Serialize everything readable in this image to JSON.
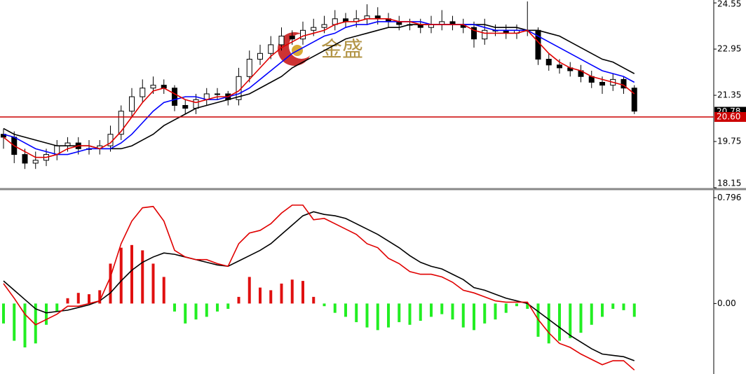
{
  "chart_data": [
    {
      "type": "candlestick",
      "watermark": "金盛",
      "ylim": [
        18.15,
        24.65
      ],
      "yticks": [
        24.55,
        22.95,
        21.35,
        19.75,
        18.15
      ],
      "up_color": "#ffffff",
      "down_color": "#000000",
      "open": [
        20.0,
        19.9,
        19.3,
        19.0,
        19.1,
        19.3,
        19.6,
        19.7,
        19.5,
        19.5,
        19.6,
        20.0,
        20.8,
        21.3,
        21.6,
        21.7,
        21.6,
        21.0,
        20.9,
        21.2,
        21.4,
        21.4,
        21.2,
        22.0,
        22.6,
        22.8,
        23.1,
        23.4,
        23.3,
        23.6,
        23.7,
        23.8,
        24.0,
        23.9,
        24.0,
        24.1,
        24.0,
        23.9,
        23.8,
        23.8,
        23.7,
        23.8,
        23.9,
        23.8,
        23.7,
        23.3,
        23.6,
        23.6,
        23.5,
        23.6,
        23.6,
        22.6,
        22.4,
        22.3,
        22.2,
        22.0,
        21.8,
        21.7,
        21.9,
        21.6
      ],
      "high": [
        20.2,
        20.1,
        19.5,
        19.4,
        19.5,
        19.8,
        19.9,
        19.9,
        19.8,
        19.8,
        20.3,
        21.0,
        21.6,
        21.9,
        22.0,
        21.9,
        21.7,
        21.2,
        21.4,
        21.6,
        21.6,
        21.5,
        22.3,
        22.9,
        23.1,
        23.4,
        23.7,
        23.6,
        23.9,
        24.0,
        24.1,
        24.3,
        24.2,
        24.3,
        24.5,
        24.4,
        24.2,
        24.1,
        24.0,
        24.0,
        24.1,
        24.3,
        24.1,
        24.0,
        23.9,
        24.0,
        23.8,
        23.8,
        23.8,
        24.6,
        23.7,
        22.8,
        22.6,
        22.5,
        22.4,
        22.2,
        22.0,
        22.1,
        22.0,
        21.7
      ],
      "low": [
        19.5,
        19.0,
        18.8,
        18.8,
        18.9,
        19.1,
        19.4,
        19.3,
        19.3,
        19.3,
        19.4,
        19.8,
        20.6,
        21.1,
        21.4,
        21.4,
        20.8,
        20.7,
        20.7,
        21.0,
        21.2,
        21.0,
        21.0,
        21.8,
        22.4,
        22.6,
        22.9,
        23.1,
        23.1,
        23.4,
        23.5,
        23.6,
        23.7,
        23.7,
        23.8,
        23.8,
        23.7,
        23.6,
        23.6,
        23.5,
        23.5,
        23.6,
        23.6,
        23.5,
        23.0,
        23.1,
        23.4,
        23.3,
        23.3,
        23.4,
        22.4,
        22.2,
        22.1,
        22.0,
        21.8,
        21.6,
        21.4,
        21.5,
        21.4,
        20.7
      ],
      "close": [
        19.9,
        19.3,
        19.0,
        19.1,
        19.3,
        19.6,
        19.7,
        19.5,
        19.5,
        19.6,
        20.0,
        20.8,
        21.3,
        21.6,
        21.7,
        21.6,
        21.0,
        20.9,
        21.2,
        21.4,
        21.4,
        21.2,
        22.0,
        22.6,
        22.8,
        23.1,
        23.4,
        23.3,
        23.6,
        23.7,
        23.8,
        24.0,
        23.9,
        24.0,
        24.1,
        24.0,
        23.9,
        23.8,
        23.8,
        23.7,
        23.8,
        23.9,
        23.8,
        23.7,
        23.3,
        23.6,
        23.6,
        23.5,
        23.6,
        23.6,
        22.6,
        22.4,
        22.3,
        22.2,
        22.0,
        21.8,
        21.7,
        21.9,
        21.6,
        20.8
      ],
      "series": [
        {
          "color": "#000000",
          "values": [
            20.2,
            20.0,
            19.9,
            19.8,
            19.7,
            19.6,
            19.6,
            19.6,
            19.6,
            19.5,
            19.5,
            19.5,
            19.6,
            19.8,
            20.0,
            20.3,
            20.5,
            20.7,
            20.9,
            21.0,
            21.1,
            21.2,
            21.3,
            21.4,
            21.6,
            21.8,
            22.0,
            22.3,
            22.5,
            22.7,
            22.9,
            23.1,
            23.3,
            23.4,
            23.5,
            23.6,
            23.7,
            23.7,
            23.8,
            23.8,
            23.8,
            23.8,
            23.8,
            23.8,
            23.8,
            23.8,
            23.7,
            23.7,
            23.7,
            23.6,
            23.6,
            23.5,
            23.4,
            23.2,
            23.0,
            22.8,
            22.6,
            22.5,
            22.3,
            22.1
          ]
        },
        {
          "color": "#0000ff",
          "values": [
            20.0,
            19.9,
            19.7,
            19.5,
            19.4,
            19.3,
            19.3,
            19.4,
            19.5,
            19.5,
            19.5,
            19.7,
            20.0,
            20.4,
            20.8,
            21.1,
            21.2,
            21.3,
            21.3,
            21.2,
            21.2,
            21.3,
            21.4,
            21.6,
            21.9,
            22.2,
            22.5,
            22.8,
            23.0,
            23.2,
            23.4,
            23.5,
            23.7,
            23.8,
            23.8,
            23.9,
            23.9,
            23.9,
            23.9,
            23.9,
            23.8,
            23.8,
            23.8,
            23.8,
            23.8,
            23.7,
            23.6,
            23.6,
            23.6,
            23.6,
            23.4,
            23.2,
            23.0,
            22.8,
            22.6,
            22.4,
            22.2,
            22.1,
            22.0,
            21.8
          ]
        },
        {
          "color": "#e00000",
          "values": [
            19.9,
            19.6,
            19.4,
            19.2,
            19.2,
            19.3,
            19.5,
            19.6,
            19.6,
            19.5,
            19.7,
            20.1,
            20.6,
            21.1,
            21.5,
            21.6,
            21.4,
            21.2,
            21.1,
            21.2,
            21.3,
            21.3,
            21.5,
            21.9,
            22.3,
            22.7,
            23.0,
            23.2,
            23.4,
            23.5,
            23.6,
            23.8,
            23.9,
            23.9,
            24.0,
            24.0,
            24.0,
            23.9,
            23.9,
            23.8,
            23.8,
            23.8,
            23.8,
            23.8,
            23.6,
            23.5,
            23.5,
            23.5,
            23.5,
            23.6,
            23.2,
            22.8,
            22.5,
            22.3,
            22.2,
            22.0,
            21.9,
            21.8,
            21.7,
            21.4
          ]
        }
      ],
      "price_labels": [
        {
          "value": 20.78,
          "color": "#000000"
        }
      ],
      "hlines": [
        {
          "value": 20.6,
          "label": "20.60",
          "color": "#cc0000"
        }
      ]
    },
    {
      "type": "macd",
      "ylim": [
        -0.53,
        0.85
      ],
      "yticks": [
        0.796,
        {
          "value": 0,
          "label": "0.00"
        }
      ],
      "positive_color": "#e01010",
      "negative_color": "#22ee22",
      "histogram": [
        -0.15,
        -0.28,
        -0.33,
        -0.3,
        -0.16,
        -0.06,
        0.04,
        0.08,
        0.07,
        0.1,
        0.3,
        0.42,
        0.44,
        0.4,
        0.3,
        0.2,
        -0.06,
        -0.15,
        -0.12,
        -0.1,
        -0.06,
        -0.04,
        0.05,
        0.2,
        0.12,
        0.1,
        0.15,
        0.18,
        0.17,
        0.05,
        -0.02,
        -0.07,
        -0.1,
        -0.14,
        -0.18,
        -0.2,
        -0.18,
        -0.14,
        -0.16,
        -0.13,
        -0.1,
        -0.08,
        -0.12,
        -0.18,
        -0.2,
        -0.15,
        -0.12,
        -0.07,
        -0.02,
        -0.04,
        -0.25,
        -0.3,
        -0.28,
        -0.26,
        -0.22,
        -0.16,
        -0.1,
        -0.04,
        -0.05,
        -0.1
      ],
      "series": [
        {
          "color": "#000000",
          "values": [
            0.17,
            0.1,
            0.03,
            -0.04,
            -0.07,
            -0.06,
            -0.05,
            -0.03,
            -0.01,
            0.02,
            0.08,
            0.17,
            0.25,
            0.31,
            0.35,
            0.38,
            0.37,
            0.35,
            0.33,
            0.31,
            0.29,
            0.28,
            0.32,
            0.36,
            0.4,
            0.45,
            0.52,
            0.59,
            0.66,
            0.69,
            0.67,
            0.66,
            0.64,
            0.6,
            0.56,
            0.52,
            0.47,
            0.42,
            0.36,
            0.31,
            0.28,
            0.26,
            0.22,
            0.18,
            0.12,
            0.1,
            0.07,
            0.04,
            0.02,
            0.0,
            -0.06,
            -0.12,
            -0.18,
            -0.24,
            -0.29,
            -0.34,
            -0.38,
            -0.39,
            -0.4,
            -0.43
          ]
        },
        {
          "color": "#e00000",
          "values": [
            0.15,
            0.04,
            -0.08,
            -0.16,
            -0.12,
            -0.08,
            -0.02,
            -0.02,
            0.0,
            0.02,
            0.2,
            0.45,
            0.62,
            0.72,
            0.73,
            0.62,
            0.4,
            0.35,
            0.33,
            0.33,
            0.3,
            0.28,
            0.45,
            0.53,
            0.55,
            0.6,
            0.68,
            0.74,
            0.74,
            0.63,
            0.64,
            0.6,
            0.56,
            0.52,
            0.45,
            0.42,
            0.34,
            0.3,
            0.24,
            0.22,
            0.22,
            0.2,
            0.16,
            0.1,
            0.08,
            0.05,
            0.02,
            0.01,
            0.01,
            0.01,
            -0.12,
            -0.22,
            -0.3,
            -0.33,
            -0.38,
            -0.42,
            -0.46,
            -0.43,
            -0.43,
            -0.5
          ]
        }
      ]
    }
  ]
}
